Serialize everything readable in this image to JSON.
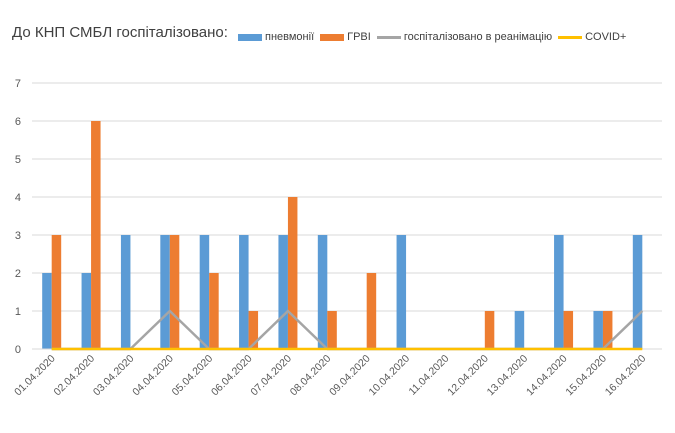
{
  "chart_data": {
    "type": "bar",
    "title": "До КНП СМБЛ госпіталізовано:",
    "categories": [
      "01.04.2020",
      "02.04.2020",
      "03.04.2020",
      "04.04.2020",
      "05.04.2020",
      "06.04.2020",
      "07.04.2020",
      "08.04.2020",
      "09.04.2020",
      "10.04.2020",
      "11.04.2020",
      "12.04.2020",
      "13.04.2020",
      "14.04.2020",
      "15.04.2020",
      "16.04.2020"
    ],
    "series": [
      {
        "name": "пневмонії",
        "kind": "bar",
        "color": "#5B9BD5",
        "values": [
          2,
          2,
          3,
          3,
          3,
          3,
          3,
          3,
          0,
          3,
          0,
          0,
          1,
          3,
          1,
          3
        ]
      },
      {
        "name": "ГРВІ",
        "kind": "bar",
        "color": "#ED7D31",
        "values": [
          3,
          6,
          0,
          3,
          2,
          1,
          4,
          1,
          2,
          0,
          0,
          1,
          0,
          1,
          1,
          0
        ]
      },
      {
        "name": "госпіталізовано в реанімацію",
        "kind": "line",
        "color": "#A5A5A5",
        "values": [
          0,
          0,
          0,
          1,
          0,
          0,
          1,
          0,
          0,
          0,
          0,
          0,
          0,
          0,
          0,
          1
        ]
      },
      {
        "name": "COVID+",
        "kind": "line",
        "color": "#FFC000",
        "values": [
          0,
          0,
          0,
          0,
          0,
          0,
          0,
          0,
          0,
          0,
          0,
          0,
          0,
          0,
          0,
          0
        ]
      }
    ],
    "ylim": [
      0,
      7
    ],
    "yticks": [
      0,
      1,
      2,
      3,
      4,
      5,
      6,
      7
    ],
    "grid": true,
    "legend": "top"
  }
}
